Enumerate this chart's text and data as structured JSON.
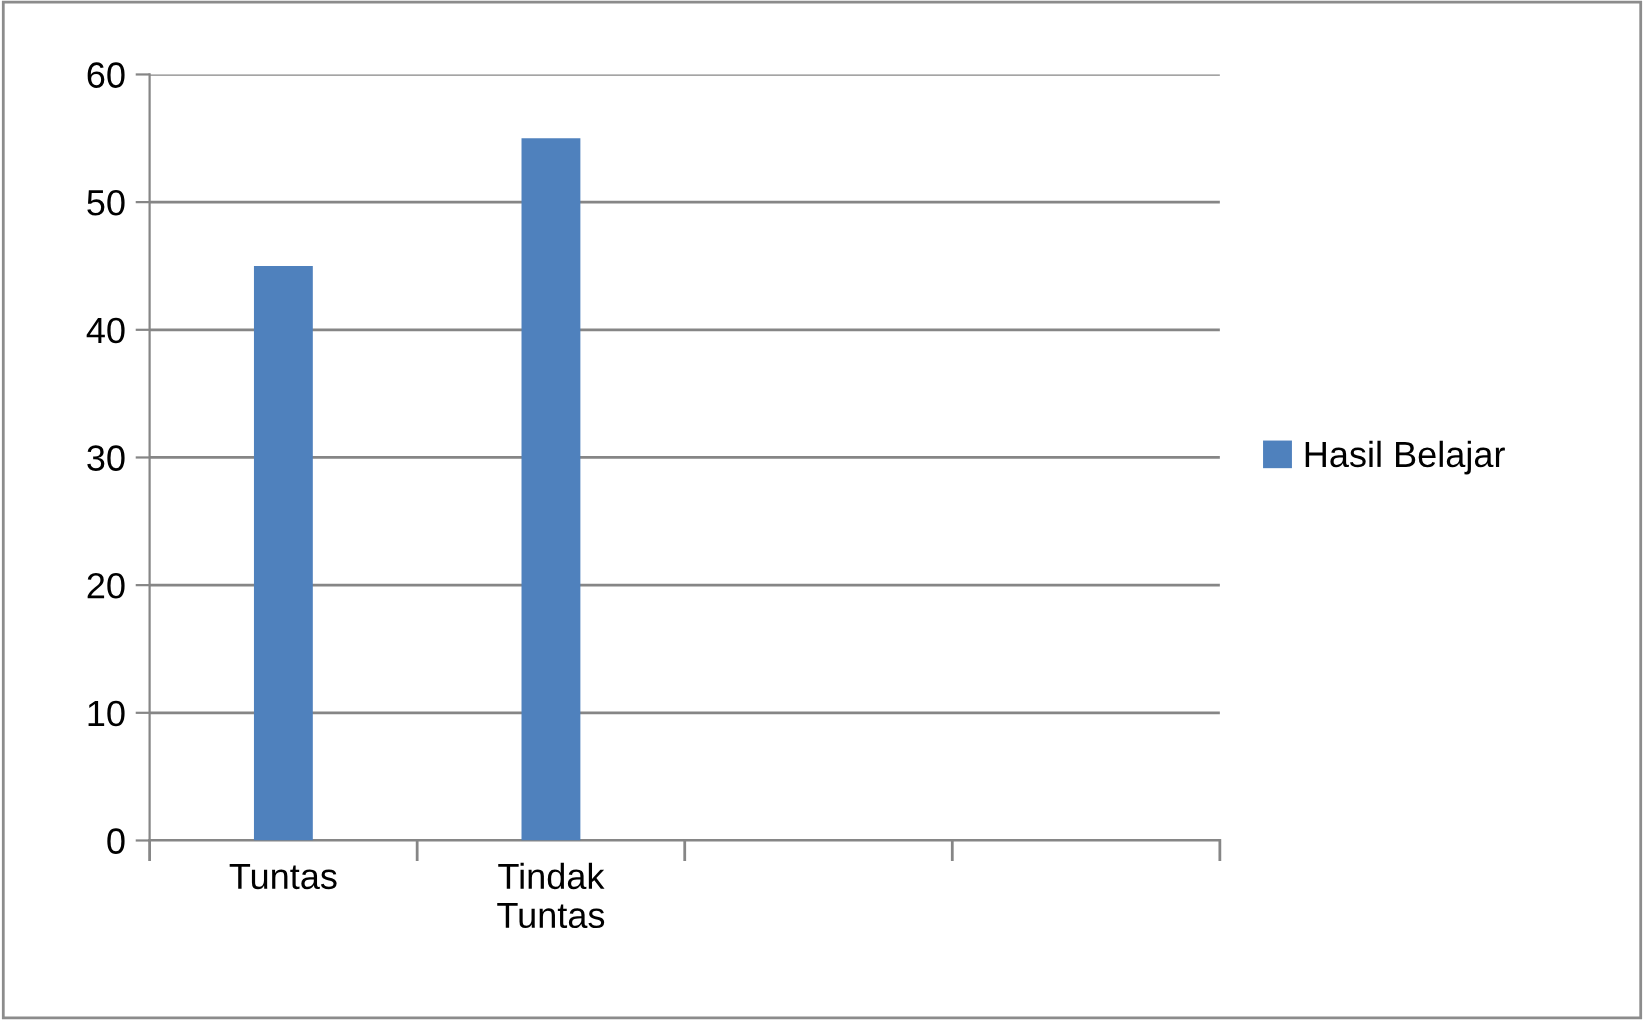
{
  "chart_data": {
    "type": "bar",
    "categories": [
      "Tuntas",
      "Tindak\nTuntas",
      null,
      null
    ],
    "series": [
      {
        "name": "Hasil Belajar",
        "color": "#4f81bd",
        "values": [
          45,
          55,
          null,
          null
        ]
      }
    ],
    "ylim": [
      0,
      60
    ],
    "yticks": [
      0,
      10,
      20,
      30,
      40,
      50,
      60
    ],
    "grid": "y",
    "legend": "right"
  }
}
